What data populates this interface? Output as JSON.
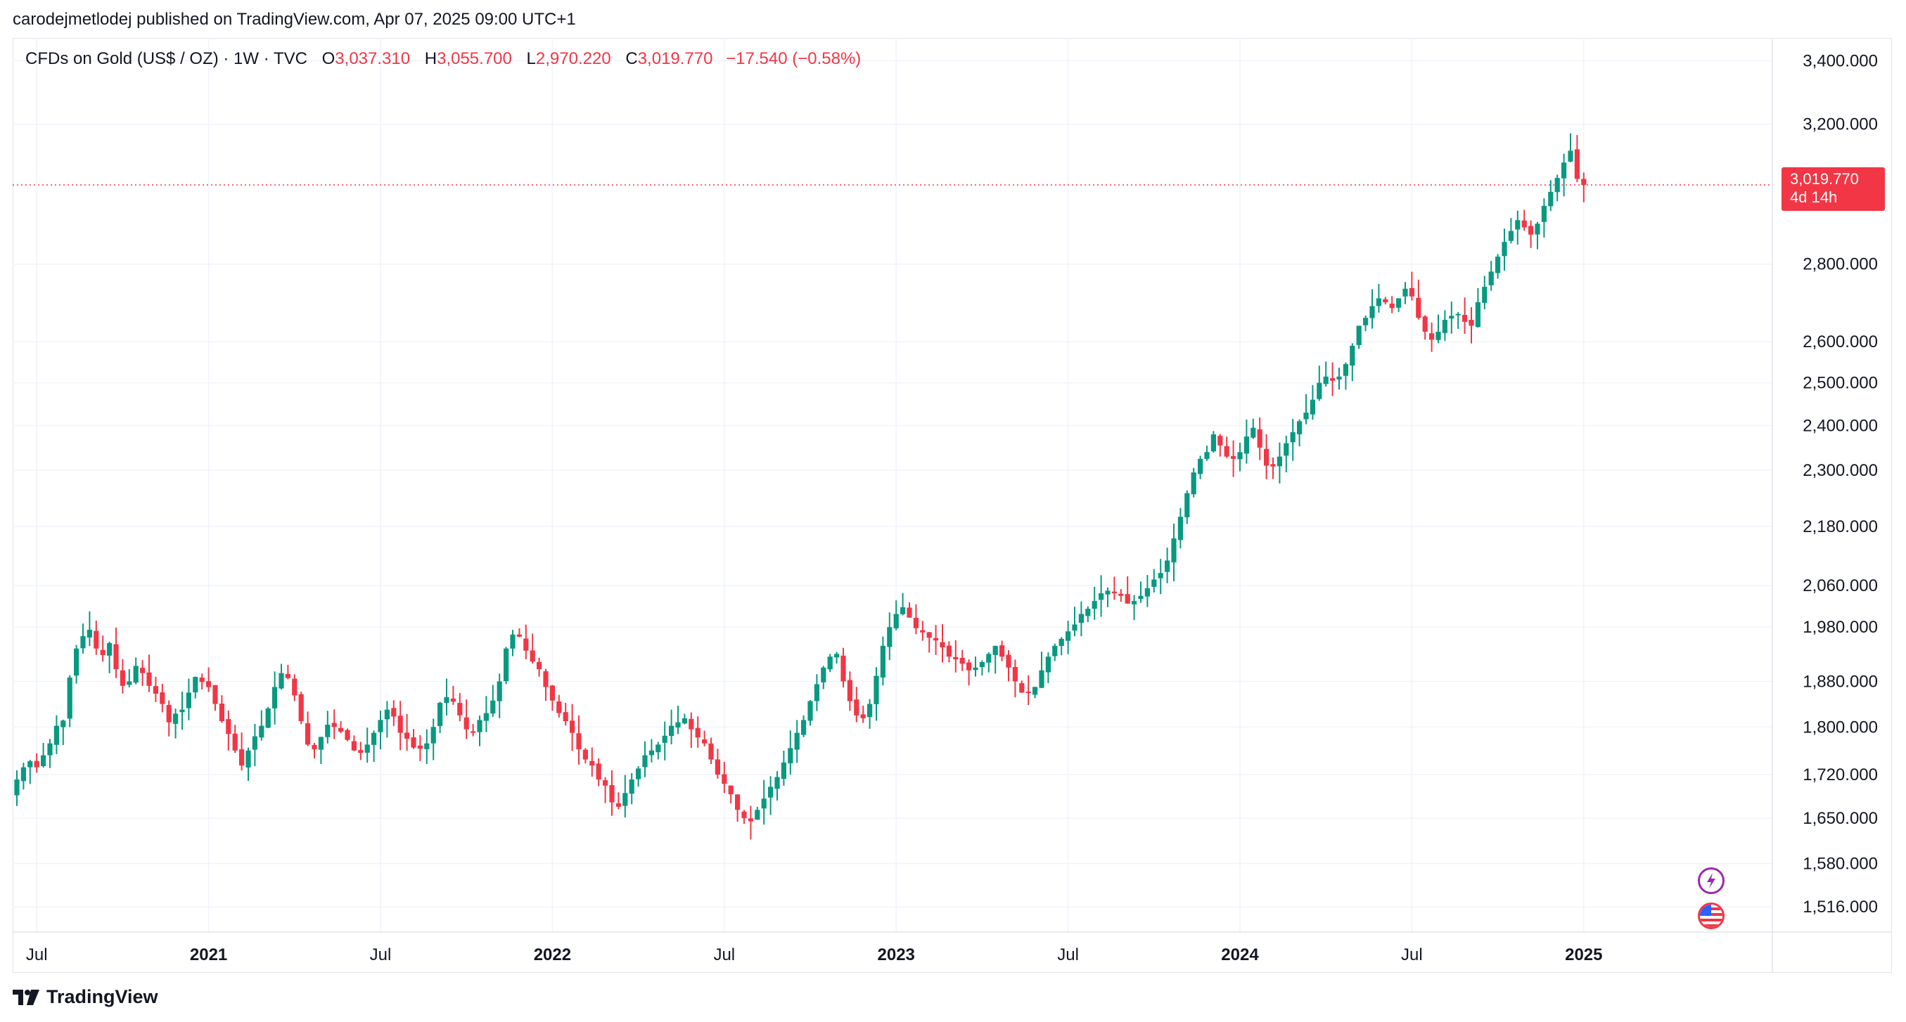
{
  "publisher_line": "carodejmetlodej published on TradingView.com, Apr 07, 2025 09:00 UTC+1",
  "legend": {
    "symbol": "CFDs on Gold (US$ / OZ) · 1W · TVC",
    "o_label": "O",
    "o_value": "3,037.310",
    "h_label": "H",
    "h_value": "3,055.700",
    "l_label": "L",
    "l_value": "2,970.220",
    "c_label": "C",
    "c_value": "3,019.770",
    "change": "−17.540 (−0.58%)"
  },
  "price_tag": {
    "price": "3,019.770",
    "countdown": "4d 14h"
  },
  "footer": {
    "brand": "TradingView"
  },
  "colors": {
    "up": "#089981",
    "down": "#f23645",
    "grid": "#f0f3fa",
    "text": "#131722",
    "last_price": "#f23645"
  },
  "events": [
    {
      "icon": "lightning-event-icon"
    },
    {
      "icon": "us-flag-event-icon"
    }
  ],
  "chart_data": {
    "type": "candlestick",
    "title": "CFDs on Gold (US$ / OZ) · 1W · TVC",
    "interval": "1W",
    "scale": "logarithmic",
    "ylim": [
      1480,
      3470
    ],
    "y_ticks": [
      "3,400.000",
      "3,200.000",
      "2,800.000",
      "2,600.000",
      "2,500.000",
      "2,400.000",
      "2,300.000",
      "2,180.000",
      "2,060.000",
      "1,980.000",
      "1,880.000",
      "1,800.000",
      "1,720.000",
      "1,650.000",
      "1,580.000",
      "1,516.000"
    ],
    "x_ticks": [
      {
        "label": "Jul",
        "bold": false,
        "week": 3
      },
      {
        "label": "2021",
        "bold": true,
        "week": 29
      },
      {
        "label": "Jul",
        "bold": false,
        "week": 55
      },
      {
        "label": "2022",
        "bold": true,
        "week": 81
      },
      {
        "label": "Jul",
        "bold": false,
        "week": 107
      },
      {
        "label": "2023",
        "bold": true,
        "week": 133
      },
      {
        "label": "Jul",
        "bold": false,
        "week": 159
      },
      {
        "label": "2024",
        "bold": true,
        "week": 185
      },
      {
        "label": "Jul",
        "bold": false,
        "week": 211
      },
      {
        "label": "2025",
        "bold": true,
        "week": 237
      }
    ],
    "last_price": 3019.77,
    "closes": [
      1712,
      1732,
      1742,
      1732,
      1752,
      1772,
      1802,
      1811,
      1887,
      1940,
      1963,
      1975,
      1940,
      1928,
      1950,
      1902,
      1872,
      1880,
      1908,
      1895,
      1872,
      1858,
      1840,
      1808,
      1823,
      1830,
      1860,
      1888,
      1879,
      1870,
      1840,
      1810,
      1788,
      1760,
      1735,
      1760,
      1784,
      1802,
      1832,
      1870,
      1895,
      1886,
      1855,
      1810,
      1770,
      1762,
      1783,
      1804,
      1800,
      1792,
      1778,
      1760,
      1756,
      1770,
      1790,
      1812,
      1830,
      1818,
      1790,
      1780,
      1765,
      1763,
      1772,
      1800,
      1842,
      1852,
      1844,
      1820,
      1796,
      1790,
      1812,
      1824,
      1846,
      1880,
      1940,
      1966,
      1962,
      1936,
      1916,
      1902,
      1870,
      1846,
      1824,
      1810,
      1790,
      1762,
      1745,
      1735,
      1712,
      1702,
      1675,
      1668,
      1690,
      1712,
      1730,
      1752,
      1760,
      1770,
      1785,
      1802,
      1808,
      1815,
      1796,
      1782,
      1772,
      1745,
      1720,
      1705,
      1688,
      1663,
      1650,
      1645,
      1663,
      1681,
      1700,
      1716,
      1740,
      1764,
      1790,
      1812,
      1845,
      1875,
      1905,
      1925,
      1930,
      1880,
      1845,
      1820,
      1815,
      1840,
      1890,
      1945,
      1980,
      2005,
      2018,
      1998,
      1978,
      1970,
      1960,
      1955,
      1942,
      1925,
      1920,
      1912,
      1900,
      1905,
      1915,
      1930,
      1945,
      1925,
      1905,
      1880,
      1860,
      1860,
      1870,
      1900,
      1925,
      1945,
      1958,
      1972,
      1985,
      2005,
      2015,
      2030,
      2045,
      2050,
      2045,
      2040,
      2025,
      2030,
      2040,
      2055,
      2072,
      2085,
      2110,
      2155,
      2200,
      2250,
      2295,
      2325,
      2340,
      2380,
      2355,
      2330,
      2325,
      2340,
      2375,
      2395,
      2350,
      2310,
      2308,
      2330,
      2360,
      2385,
      2410,
      2430,
      2460,
      2500,
      2515,
      2505,
      2515,
      2545,
      2590,
      2640,
      2660,
      2690,
      2710,
      2700,
      2685,
      2710,
      2735,
      2715,
      2660,
      2625,
      2605,
      2625,
      2655,
      2665,
      2670,
      2650,
      2640,
      2700,
      2740,
      2780,
      2820,
      2860,
      2890,
      2920,
      2900,
      2880,
      2910,
      2960,
      3000,
      3040,
      3085,
      3120,
      3037.31,
      3019.77
    ],
    "volatility_note": "weekly OHLC approximated from chart"
  }
}
